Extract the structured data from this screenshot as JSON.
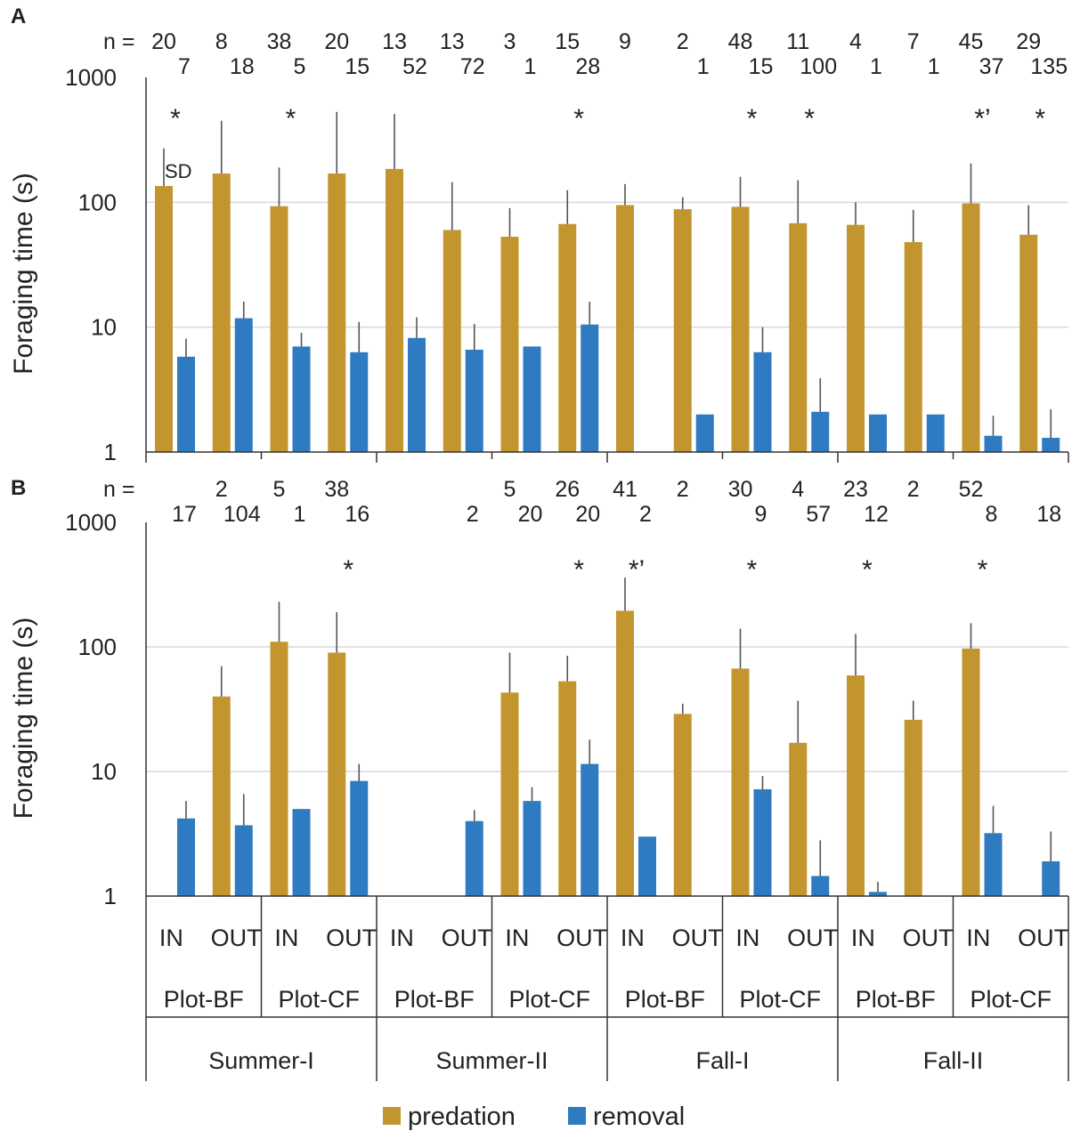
{
  "figure": {
    "panels": [
      "A",
      "B"
    ],
    "legend": [
      {
        "label": "predation",
        "color": "#C2952F"
      },
      {
        "label": "removal",
        "color": "#2E7BC1"
      }
    ],
    "colors": {
      "predation": "#C2952F",
      "removal": "#2E7BC1",
      "grid": "#D9D9D9",
      "axis": "#333333"
    }
  },
  "chart_data": [
    {
      "panel": "A",
      "type": "bar",
      "yscale": "log",
      "ylim": [
        1,
        1000
      ],
      "ylabel": "Foraging time (s)",
      "yticks": [
        "1",
        "10",
        "100",
        "1000"
      ],
      "n_prefix": "n =",
      "sd_label": "SD",
      "categories": [
        "Summer-I Plot-BF IN",
        "Summer-I Plot-BF OUT",
        "Summer-I Plot-CF IN",
        "Summer-I Plot-CF OUT",
        "Summer-II Plot-BF IN",
        "Summer-II Plot-BF OUT",
        "Summer-II Plot-CF IN",
        "Summer-II Plot-CF OUT",
        "Fall-I Plot-BF IN",
        "Fall-I Plot-BF OUT",
        "Fall-I Plot-CF IN",
        "Fall-I Plot-CF OUT",
        "Fall-II Plot-BF IN",
        "Fall-II Plot-BF OUT",
        "Fall-II Plot-CF IN",
        "Fall-II Plot-CF OUT"
      ],
      "series": [
        {
          "name": "predation",
          "values": [
            135,
            170,
            93,
            170,
            185,
            60,
            53,
            67,
            95,
            88,
            92,
            68,
            66,
            48,
            98,
            55
          ],
          "sd_upper": [
            270,
            450,
            190,
            530,
            510,
            145,
            90,
            125,
            140,
            110,
            160,
            150,
            100,
            87,
            205,
            95
          ],
          "n": [
            "20",
            "8",
            "38",
            "20",
            "13",
            "13",
            "3",
            "15",
            "9",
            "2",
            "48",
            "11",
            "4",
            "7",
            "45",
            "29"
          ]
        },
        {
          "name": "removal",
          "values": [
            5.8,
            11.8,
            7,
            6.3,
            8.2,
            6.6,
            7,
            10.5,
            null,
            2,
            6.3,
            2.1,
            2,
            2,
            1.35,
            1.3
          ],
          "sd_upper": [
            8.1,
            16,
            9,
            11,
            12,
            10.6,
            null,
            16,
            null,
            null,
            10,
            3.9,
            null,
            null,
            1.95,
            2.2
          ],
          "n": [
            "7",
            "18",
            "5",
            "15",
            "52",
            "72",
            "1",
            "28",
            "",
            "1",
            "15",
            "100",
            "1",
            "1",
            "37",
            "135"
          ]
        }
      ],
      "significance": [
        "*",
        "",
        "*",
        "",
        "",
        "",
        "",
        "*",
        "",
        "",
        "*",
        "*",
        "",
        "",
        "*’",
        "*"
      ]
    },
    {
      "panel": "B",
      "type": "bar",
      "yscale": "log",
      "ylim": [
        1,
        1000
      ],
      "ylabel": "Foraging time (s)",
      "yticks": [
        "1",
        "10",
        "100",
        "1000"
      ],
      "n_prefix": "n =",
      "categories": [
        "Summer-I Plot-BF IN",
        "Summer-I Plot-BF OUT",
        "Summer-I Plot-CF IN",
        "Summer-I Plot-CF OUT",
        "Summer-II Plot-BF IN",
        "Summer-II Plot-BF OUT",
        "Summer-II Plot-CF IN",
        "Summer-II Plot-CF OUT",
        "Fall-I Plot-BF IN",
        "Fall-I Plot-BF OUT",
        "Fall-I Plot-CF IN",
        "Fall-I Plot-CF OUT",
        "Fall-II Plot-BF IN",
        "Fall-II Plot-BF OUT",
        "Fall-II Plot-CF IN",
        "Fall-II Plot-CF OUT"
      ],
      "series": [
        {
          "name": "predation",
          "values": [
            null,
            40,
            110,
            90,
            null,
            null,
            43,
            53,
            195,
            29,
            67,
            17,
            59,
            26,
            97,
            null
          ],
          "sd_upper": [
            null,
            70,
            230,
            190,
            null,
            null,
            90,
            85,
            360,
            35,
            140,
            37,
            127,
            37,
            155,
            null
          ],
          "n": [
            "",
            "2",
            "5",
            "38",
            "",
            "",
            "5",
            "26",
            "41",
            "2",
            "30",
            "4",
            "23",
            "2",
            "52",
            ""
          ]
        },
        {
          "name": "removal",
          "values": [
            4.2,
            3.7,
            5,
            8.4,
            null,
            4,
            5.8,
            11.5,
            3,
            null,
            7.2,
            1.45,
            1.08,
            null,
            3.2,
            1.9
          ],
          "sd_upper": [
            5.8,
            6.6,
            null,
            11.5,
            null,
            4.9,
            7.5,
            18,
            null,
            null,
            9.2,
            2.8,
            1.3,
            null,
            5.3,
            3.3
          ],
          "n": [
            "17",
            "104",
            "1",
            "16",
            "",
            "2",
            "20",
            "20",
            "2",
            "",
            "9",
            "57",
            "12",
            "",
            "8",
            "18"
          ]
        }
      ],
      "significance": [
        "",
        "",
        "",
        "*",
        "",
        "",
        "",
        "*",
        "*’",
        "",
        "*",
        "",
        "*",
        "",
        "*",
        ""
      ]
    }
  ],
  "x_axis": {
    "positions": [
      "IN",
      "OUT",
      "IN",
      "OUT",
      "IN",
      "OUT",
      "IN",
      "OUT",
      "IN",
      "OUT",
      "IN",
      "OUT",
      "IN",
      "OUT",
      "IN",
      "OUT"
    ],
    "plots": [
      "Plot-BF",
      "Plot-CF",
      "Plot-BF",
      "Plot-CF",
      "Plot-BF",
      "Plot-CF",
      "Plot-BF",
      "Plot-CF"
    ],
    "seasons": [
      "Summer-I",
      "Summer-II",
      "Fall-I",
      "Fall-II"
    ]
  }
}
